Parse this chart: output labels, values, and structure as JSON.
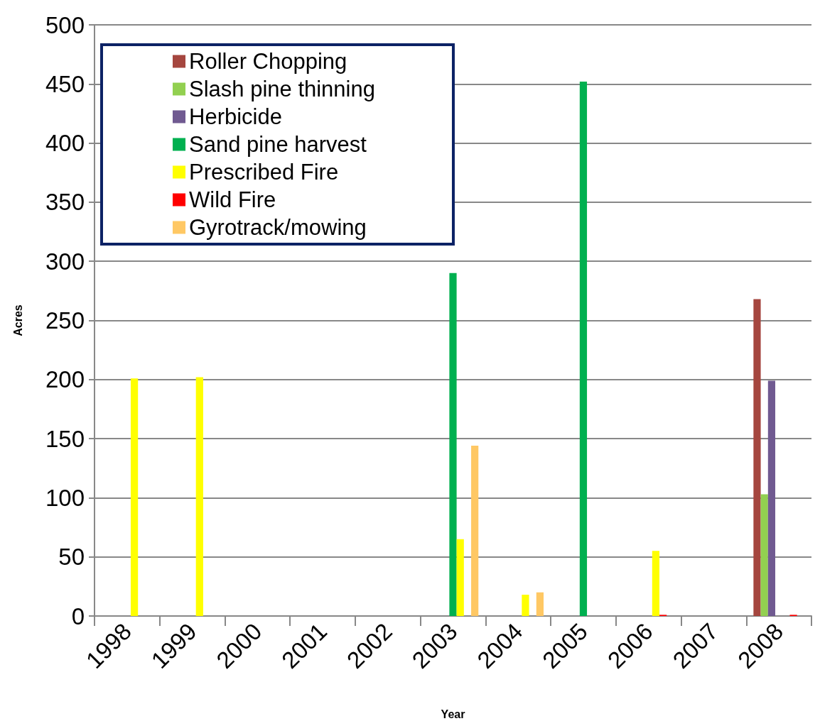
{
  "chart_data": {
    "type": "bar",
    "xlabel": "Year",
    "ylabel": "Acres",
    "categories": [
      "1998",
      "1999",
      "2000",
      "2001",
      "2002",
      "2003",
      "2004",
      "2005",
      "2006",
      "2007",
      "2008"
    ],
    "series": [
      {
        "name": "Roller Chopping",
        "color": "#a5463f",
        "values": [
          null,
          null,
          null,
          null,
          null,
          null,
          null,
          null,
          null,
          null,
          268
        ]
      },
      {
        "name": "Slash pine thinning",
        "color": "#92d050",
        "values": [
          null,
          null,
          null,
          null,
          null,
          null,
          null,
          null,
          null,
          null,
          103
        ]
      },
      {
        "name": "Herbicide",
        "color": "#705a91",
        "values": [
          null,
          null,
          null,
          null,
          null,
          null,
          null,
          null,
          null,
          null,
          199
        ]
      },
      {
        "name": "Sand pine harvest",
        "color": "#00b050",
        "values": [
          null,
          null,
          null,
          null,
          null,
          290,
          null,
          452,
          null,
          null,
          null
        ]
      },
      {
        "name": "Prescribed Fire",
        "color": "#ffff00",
        "values": [
          201,
          202,
          null,
          null,
          null,
          65,
          18,
          null,
          55,
          null,
          null
        ]
      },
      {
        "name": "Wild Fire",
        "color": "#ff0000",
        "values": [
          null,
          null,
          null,
          null,
          null,
          null,
          null,
          null,
          1,
          null,
          1
        ]
      },
      {
        "name": "Gyrotrack/mowing",
        "color": "#ffc864",
        "values": [
          null,
          null,
          null,
          null,
          null,
          144,
          20,
          null,
          null,
          null,
          null
        ]
      }
    ],
    "ylim": [
      0,
      500
    ],
    "yticks": [
      0,
      50,
      100,
      150,
      200,
      250,
      300,
      350,
      400,
      450,
      500
    ],
    "grid": "y",
    "legend": "top left"
  }
}
